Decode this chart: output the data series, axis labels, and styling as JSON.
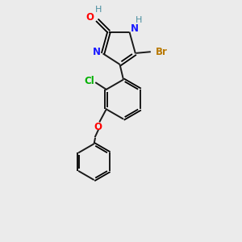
{
  "bg_color": "#ebebeb",
  "bond_color": "#1a1a1a",
  "N_color": "#1919ff",
  "O_color": "#ff0000",
  "Br_color": "#b87800",
  "Cl_color": "#00b000",
  "H_color": "#4a8fa0",
  "figsize": [
    3.0,
    3.0
  ],
  "dpi": 100,
  "xlim": [
    0,
    10
  ],
  "ylim": [
    0,
    10
  ]
}
